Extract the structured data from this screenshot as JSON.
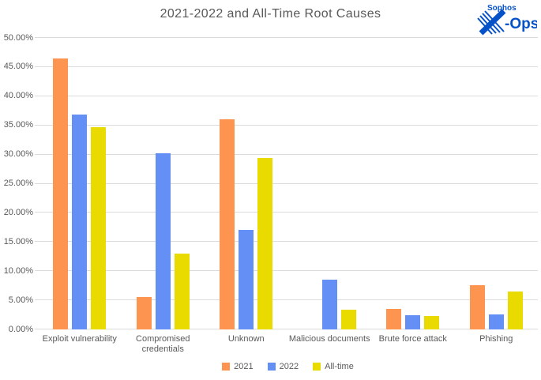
{
  "title": "2021-2022 and All-Time Root Causes",
  "logo": {
    "brand": "Sophos",
    "unit_suffix": "-Ops",
    "color": "#0551C8"
  },
  "colors": {
    "text": "#595959",
    "gridline": "#DBDBDB",
    "background": "#FFFFFF",
    "series_2021": "#FD9450",
    "series_2022": "#648FF5",
    "series_alltime": "#E9DB00"
  },
  "chart_data": {
    "type": "bar",
    "title": "2021-2022 and All-Time Root Causes",
    "categories": [
      "Exploit vulnerability",
      "Compromised credentials",
      "Unknown",
      "Malicious documents",
      "Brute force attack",
      "Phishing"
    ],
    "series": [
      {
        "name": "2021",
        "color": "#FD9450",
        "values": [
          46.5,
          5.5,
          36.0,
          0.0,
          3.5,
          7.6
        ]
      },
      {
        "name": "2022",
        "color": "#648FF5",
        "values": [
          36.9,
          30.2,
          17.1,
          8.5,
          2.5,
          2.6
        ]
      },
      {
        "name": "All-time",
        "color": "#E9DB00",
        "values": [
          34.7,
          13.0,
          29.4,
          3.4,
          2.3,
          6.5
        ]
      }
    ],
    "xlabel": "",
    "ylabel": "",
    "ylim": [
      0,
      50
    ],
    "ytick_step": 5,
    "yticks": [
      "0.00%",
      "5.00%",
      "10.00%",
      "15.00%",
      "20.00%",
      "25.00%",
      "30.00%",
      "35.00%",
      "40.00%",
      "45.00%",
      "50.00%"
    ],
    "grid": true,
    "legend_position": "bottom",
    "legend_labels": [
      "2021",
      "2022",
      "All-time"
    ]
  }
}
